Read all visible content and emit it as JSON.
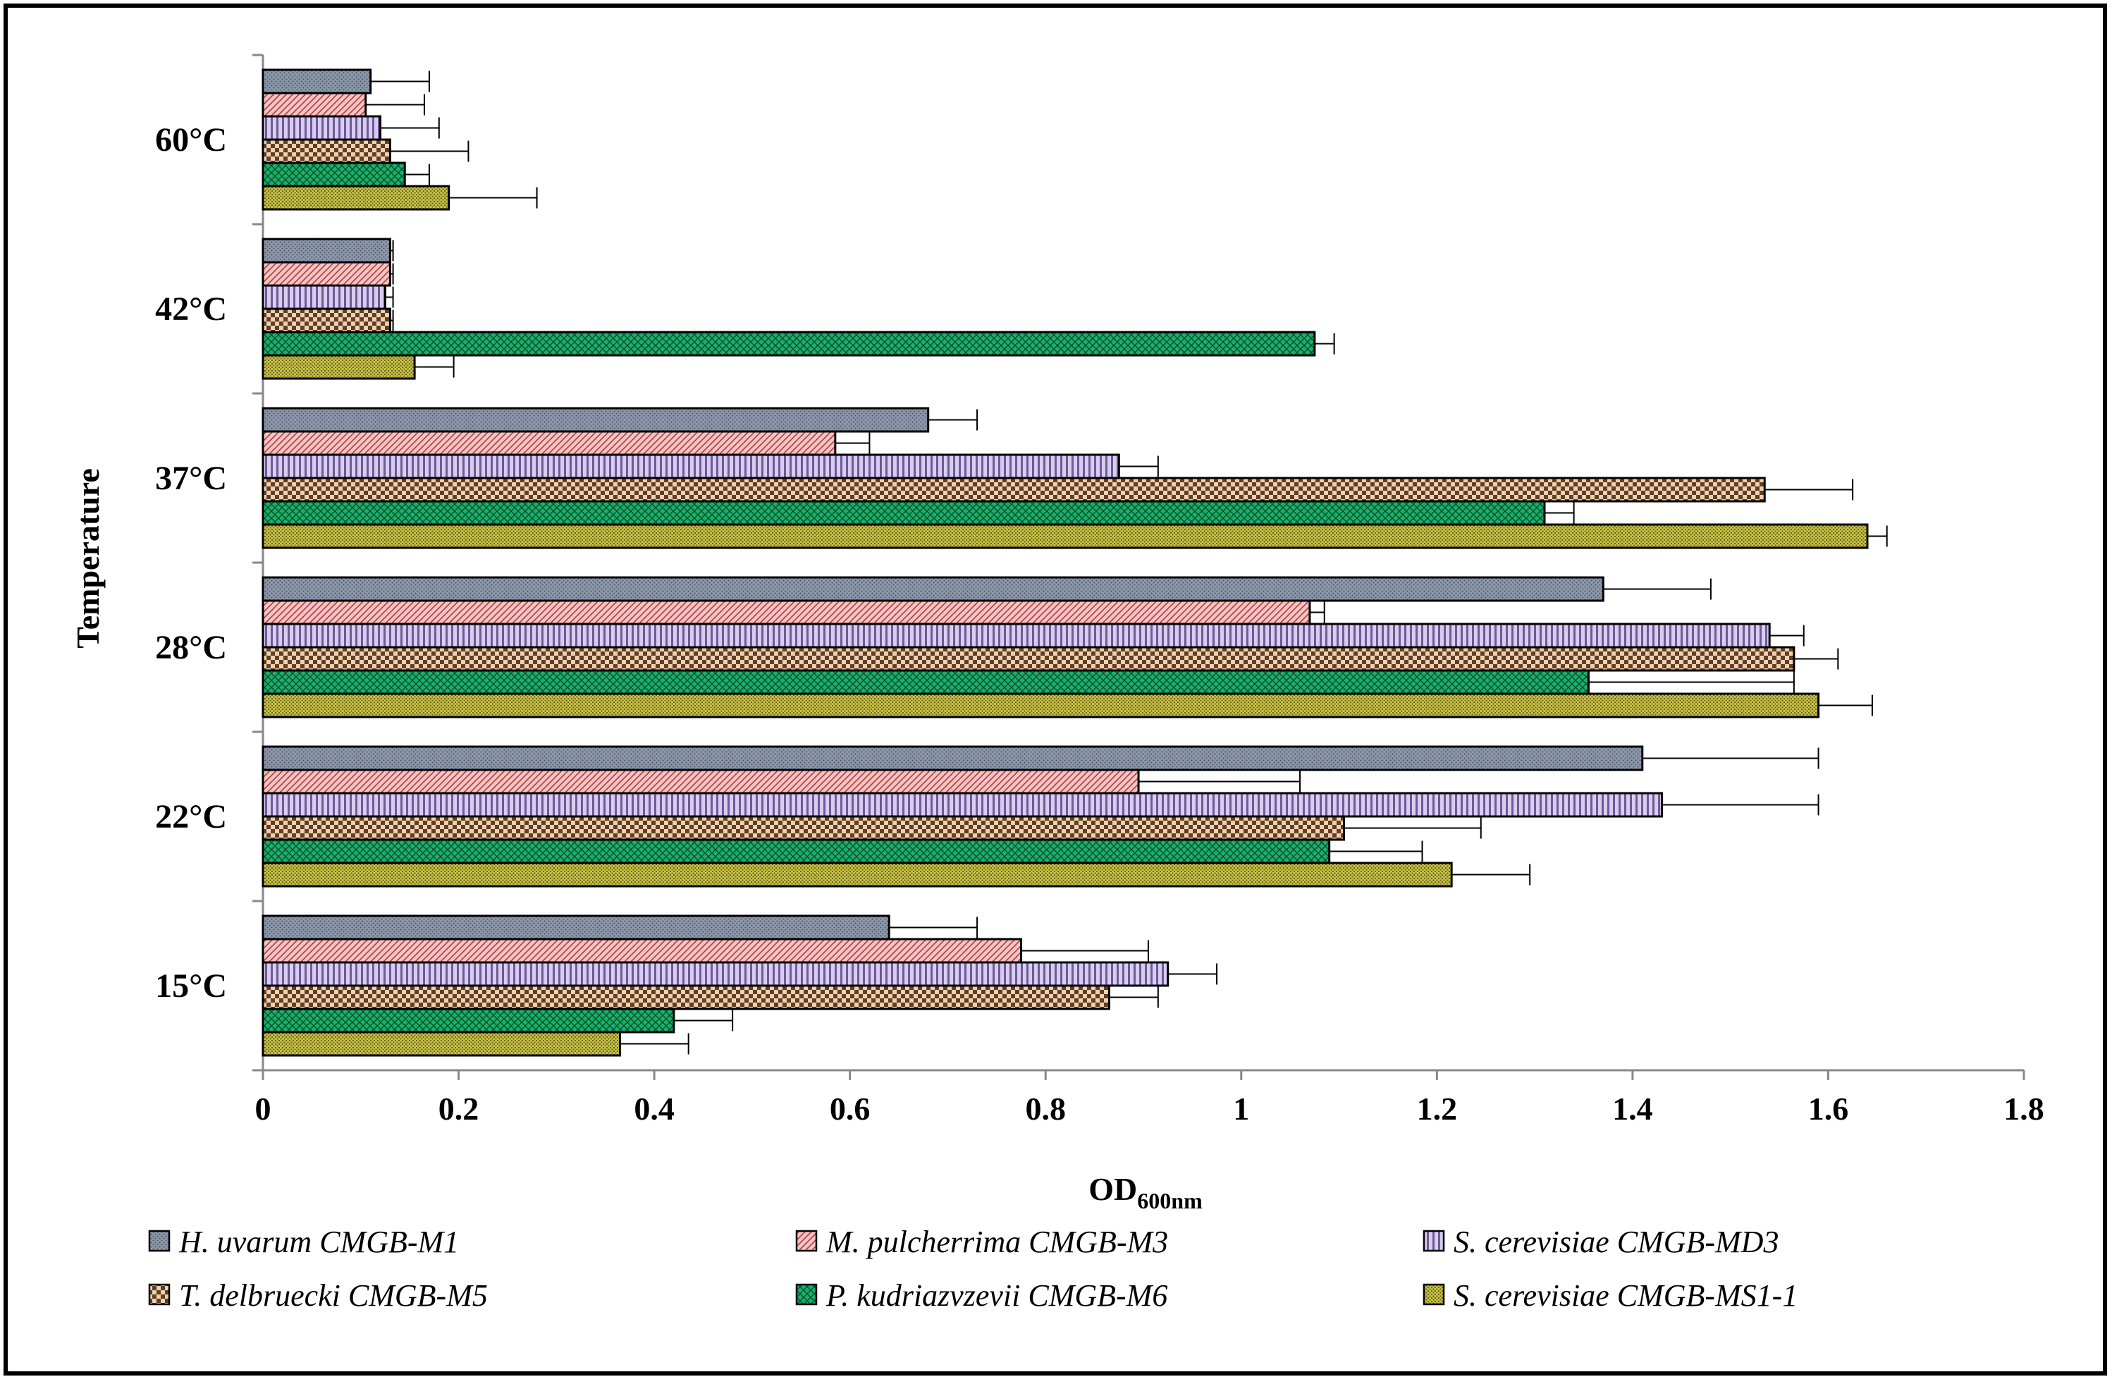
{
  "chart_data": {
    "type": "bar",
    "orientation": "horizontal",
    "title": "",
    "xlabel_main": "OD",
    "xlabel_sub": "600nm",
    "ylabel": "Temperature",
    "xlim": [
      0,
      1.8
    ],
    "xticks": [
      "0",
      "0.2",
      "0.4",
      "0.6",
      "0.8",
      "1",
      "1.2",
      "1.4",
      "1.6",
      "1.8"
    ],
    "categories": [
      "60°C",
      "42°C",
      "37°C",
      "28°C",
      "22°C",
      "15°C"
    ],
    "series": [
      {
        "name": "H. uvarum CMGB-M1",
        "color": "#8c98aa",
        "pattern": "dots",
        "values": [
          0.11,
          0.13,
          0.68,
          1.37,
          1.41,
          0.64
        ],
        "errors": [
          0.06,
          0.003,
          0.05,
          0.11,
          0.18,
          0.09
        ]
      },
      {
        "name": "M. pulcherrima CMGB-M3",
        "color": "#e8a2a2",
        "pattern": "diagonal",
        "values": [
          0.105,
          0.13,
          0.585,
          1.07,
          0.895,
          0.775
        ],
        "errors": [
          0.06,
          0.003,
          0.035,
          0.015,
          0.165,
          0.13
        ]
      },
      {
        "name": "S. cerevisiae CMGB-MD3",
        "color": "#b7a9d6",
        "pattern": "vertical",
        "values": [
          0.12,
          0.125,
          0.875,
          1.54,
          1.43,
          0.925
        ],
        "errors": [
          0.06,
          0.008,
          0.04,
          0.035,
          0.16,
          0.05
        ]
      },
      {
        "name": "T. delbruecki CMGB-M5",
        "color": "#f4c08e",
        "pattern": "checker",
        "values": [
          0.13,
          0.13,
          1.535,
          1.565,
          1.105,
          0.865
        ],
        "errors": [
          0.08,
          0.003,
          0.09,
          0.045,
          0.14,
          0.05
        ]
      },
      {
        "name": "P. kudriazvzevii CMGB-M6",
        "color": "#16a560",
        "pattern": "crosshatch",
        "values": [
          0.145,
          1.075,
          1.31,
          1.355,
          1.09,
          0.42
        ],
        "errors": [
          0.025,
          0.02,
          0.03,
          0.21,
          0.095,
          0.06
        ]
      },
      {
        "name": "S. cerevisiae CMGB-MS1-1",
        "color": "#a39e2a",
        "pattern": "speckle",
        "values": [
          0.19,
          0.155,
          1.64,
          1.59,
          1.215,
          0.365
        ],
        "errors": [
          0.09,
          0.04,
          0.02,
          0.055,
          0.08,
          0.07
        ]
      }
    ]
  }
}
